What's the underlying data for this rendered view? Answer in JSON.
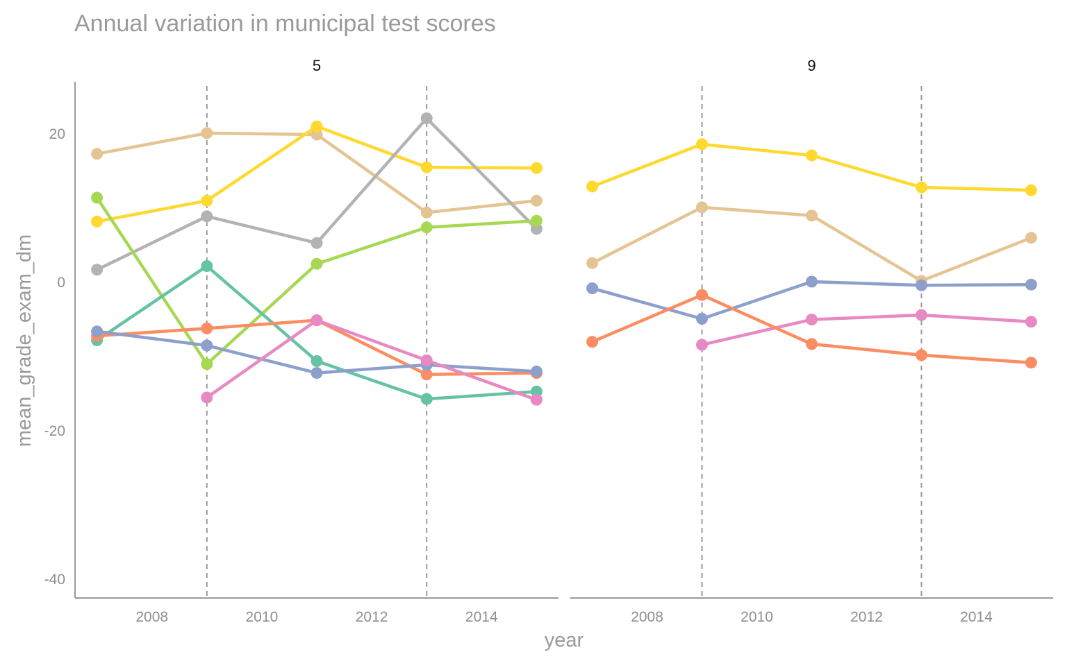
{
  "chart_data": {
    "type": "line",
    "title": "Annual variation in municipal test scores",
    "xlabel": "year",
    "ylabel": "mean_grade_exam_dm",
    "xlim": [
      2006.6,
      2015.4
    ],
    "ylim": [
      -42.5,
      27
    ],
    "x_ticks": [
      "2008",
      "2010",
      "2012",
      "2014"
    ],
    "y_ticks": [
      "20",
      "0",
      "-20",
      "-40"
    ],
    "vlines": [
      2009,
      2013
    ],
    "grid": false,
    "legend": "none",
    "panels": [
      {
        "label": "5",
        "series": [
          {
            "color": "#E5C494",
            "x": [
              2007,
              2009,
              2011,
              2013,
              2015
            ],
            "y": [
              17.3,
              20.1,
              19.9,
              9.4,
              11.0
            ]
          },
          {
            "color": "#FFD92F",
            "x": [
              2007,
              2009,
              2011,
              2013,
              2015
            ],
            "y": [
              8.2,
              11.0,
              21.0,
              15.5,
              15.4
            ]
          },
          {
            "color": "#B3B3B3",
            "x": [
              2007,
              2009,
              2011,
              2013,
              2015
            ],
            "y": [
              1.7,
              8.9,
              5.3,
              22.1,
              7.2
            ]
          },
          {
            "color": "#A6D854",
            "x": [
              2007,
              2009,
              2011,
              2013,
              2015
            ],
            "y": [
              11.4,
              -11.0,
              2.5,
              7.4,
              8.3
            ]
          },
          {
            "color": "#66C2A5",
            "x": [
              2007,
              2009,
              2011,
              2013,
              2015
            ],
            "y": [
              -7.8,
              2.2,
              -10.6,
              -15.7,
              -14.7
            ]
          },
          {
            "color": "#FC8D62",
            "x": [
              2007,
              2009,
              2011,
              2013,
              2015
            ],
            "y": [
              -7.2,
              -6.2,
              -5.1,
              -12.4,
              -12.2
            ]
          },
          {
            "color": "#8DA0CB",
            "x": [
              2007,
              2009,
              2011,
              2013,
              2015
            ],
            "y": [
              -6.6,
              -8.5,
              -12.2,
              -11.1,
              -12.0
            ]
          },
          {
            "color": "#E78AC3",
            "x": [
              2009,
              2011,
              2013,
              2015
            ],
            "y": [
              -15.5,
              -5.1,
              -10.5,
              -15.8
            ]
          }
        ]
      },
      {
        "label": "9",
        "series": [
          {
            "color": "#FFD92F",
            "x": [
              2007,
              2009,
              2011,
              2013,
              2015
            ],
            "y": [
              12.9,
              18.6,
              17.1,
              12.8,
              12.4
            ]
          },
          {
            "color": "#E5C494",
            "x": [
              2007,
              2009,
              2011,
              2013,
              2015
            ],
            "y": [
              2.6,
              10.1,
              9.0,
              0.2,
              6.0
            ]
          },
          {
            "color": "#8DA0CB",
            "x": [
              2007,
              2009,
              2011,
              2013,
              2015
            ],
            "y": [
              -0.8,
              -4.9,
              0.1,
              -0.4,
              -0.3
            ]
          },
          {
            "color": "#E78AC3",
            "x": [
              2009,
              2011,
              2013,
              2015
            ],
            "y": [
              -8.4,
              -5.0,
              -4.4,
              -5.3
            ]
          },
          {
            "color": "#FC8D62",
            "x": [
              2007,
              2009,
              2011,
              2013,
              2015
            ],
            "y": [
              -8.0,
              -1.7,
              -8.3,
              -9.8,
              -10.8
            ]
          }
        ]
      }
    ]
  }
}
